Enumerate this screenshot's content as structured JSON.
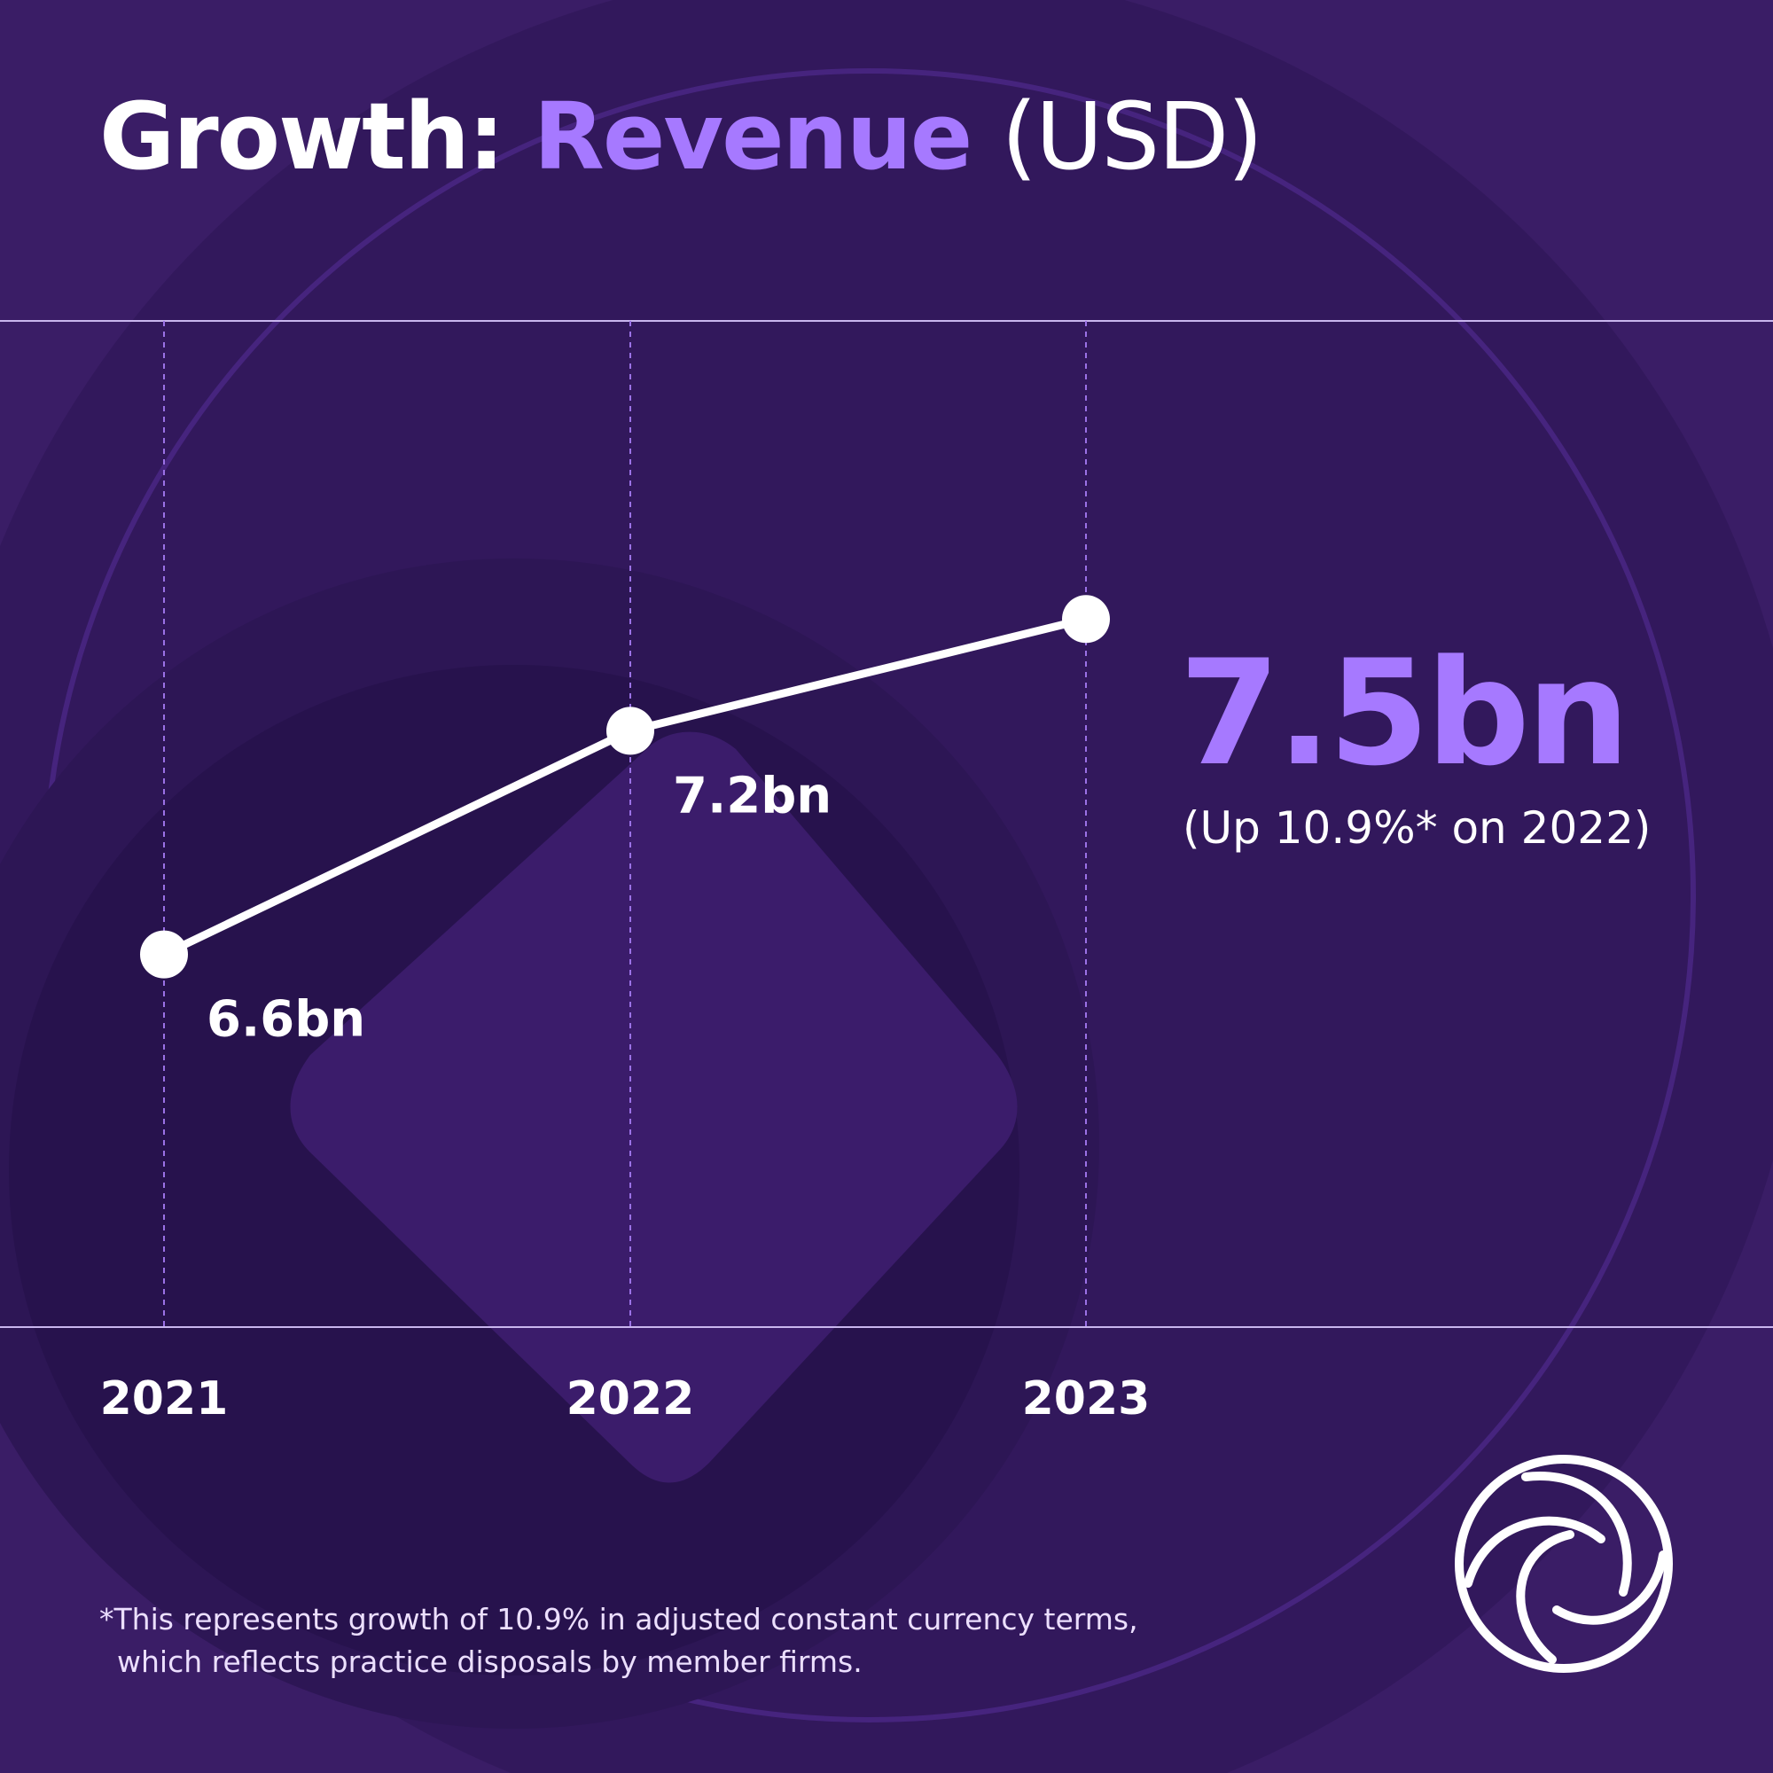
{
  "title": {
    "prefix": "Growth:",
    "accent": "Revenue",
    "suffix": "(USD)"
  },
  "headline": {
    "value": "7.5bn",
    "note": "(Up 10.9%* on 2022)"
  },
  "footnote": {
    "line1": "*This represents growth of 10.9% in adjusted constant currency terms,",
    "line2": "which reflects practice disposals by member firms."
  },
  "colors": {
    "accent": "#a679ff",
    "background": "#3a1d66",
    "line": "#ffffff"
  },
  "logo": {
    "icon": "ring-swirl-logo-icon"
  },
  "chart_data": {
    "type": "line",
    "x": [
      "2021",
      "2022",
      "2023"
    ],
    "values": [
      6.6,
      7.2,
      7.5
    ],
    "point_labels": [
      "6.6bn",
      "7.2bn",
      ""
    ],
    "grid": "vertical dashed",
    "legend": "none"
  }
}
